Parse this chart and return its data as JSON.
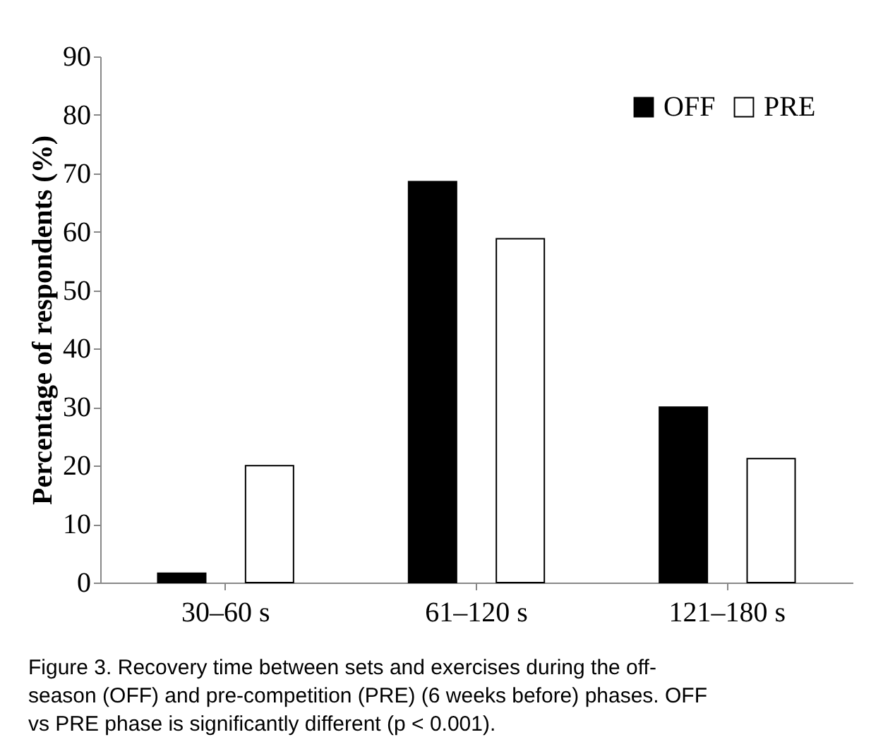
{
  "chart_data": {
    "type": "bar",
    "ylabel": "Percentage of respondents (%)",
    "categories": [
      "30–60 s",
      "61–120 s",
      "121–180 s"
    ],
    "series": [
      {
        "name": "OFF",
        "color": "#000000",
        "values": [
          1.6,
          68.6,
          30.0
        ]
      },
      {
        "name": "PRE",
        "color": "#ffffff",
        "values": [
          20.0,
          58.8,
          21.2
        ]
      }
    ],
    "ylim": [
      0,
      90
    ],
    "yticks": [
      0,
      10,
      20,
      30,
      40,
      50,
      60,
      70,
      80,
      90
    ],
    "grid": false,
    "legend": "top right",
    "annotations": [
      "Figure 3. Recovery time between sets and exercises during the off-season (OFF) and pre-competition (PRE) (6 weeks before) phases. OFF vs PRE phase is significantly different (p < 0.001)."
    ]
  }
}
